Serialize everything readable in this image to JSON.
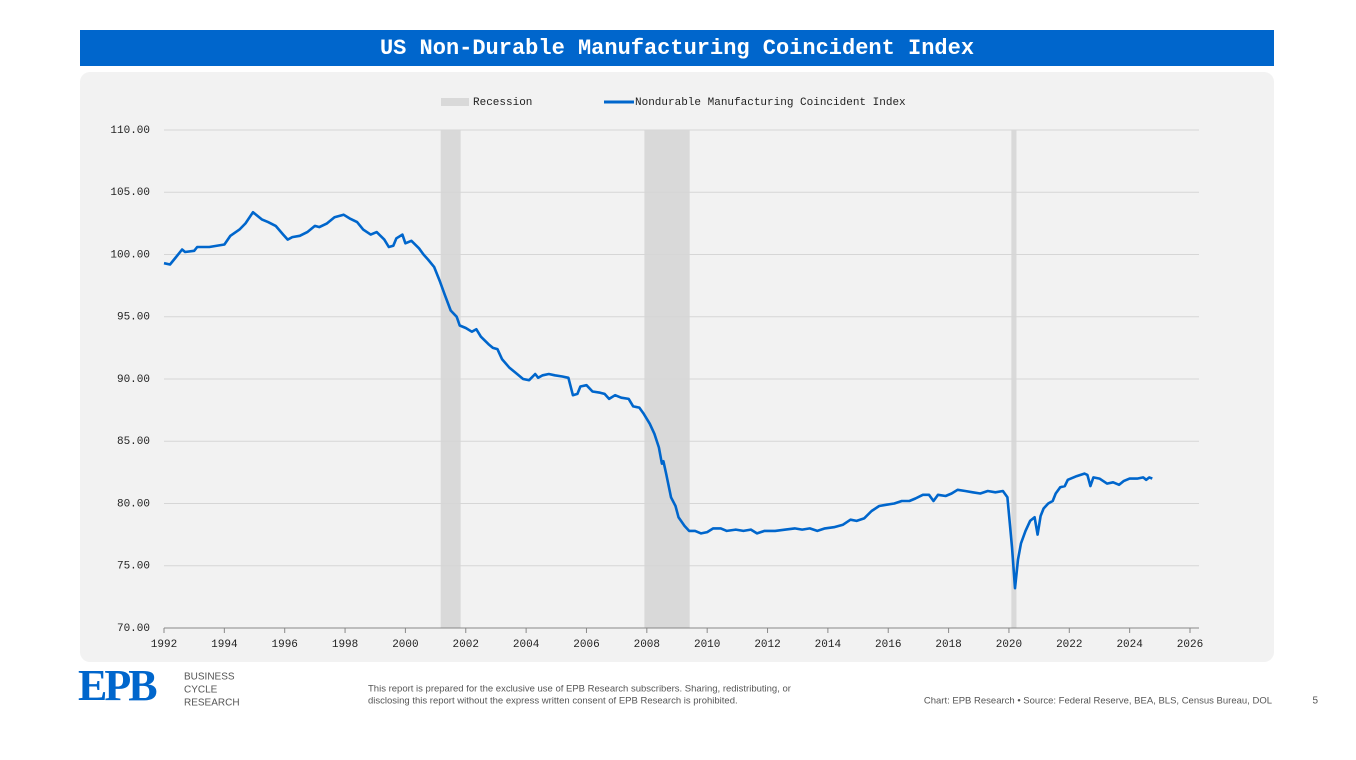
{
  "chart_data": {
    "type": "line",
    "title": "US Non-Durable Manufacturing Coincident Index",
    "grid": true,
    "legend": "top",
    "recessions": {
      "name": "Recession",
      "color": "#d9d9d9",
      "ranges": [
        [
          2001.17,
          2001.83
        ],
        [
          2007.92,
          2009.42
        ],
        [
          2020.08,
          2020.25
        ]
      ]
    },
    "x": [
      1992.0,
      1992.2,
      1992.4,
      1992.6,
      1992.7,
      1993.0,
      1993.1,
      1993.5,
      1994.0,
      1994.2,
      1994.5,
      1994.7,
      1994.95,
      1995.25,
      1995.45,
      1995.7,
      1995.95,
      1996.1,
      1996.25,
      1996.5,
      1996.75,
      1997.0,
      1997.15,
      1997.4,
      1997.65,
      1997.95,
      1998.15,
      1998.4,
      1998.6,
      1998.85,
      1999.05,
      1999.3,
      1999.45,
      1999.6,
      1999.7,
      1999.9,
      2000.0,
      2000.2,
      2000.45,
      2000.6,
      2000.75,
      2000.95,
      2001.15,
      2001.3,
      2001.5,
      2001.7,
      2001.8,
      2002.0,
      2002.2,
      2002.35,
      2002.5,
      2002.75,
      2002.9,
      2003.05,
      2003.2,
      2003.45,
      2003.65,
      2003.9,
      2004.1,
      2004.3,
      2004.4,
      2004.55,
      2004.75,
      2004.95,
      2005.2,
      2005.4,
      2005.55,
      2005.7,
      2005.8,
      2006.0,
      2006.2,
      2006.45,
      2006.6,
      2006.75,
      2006.95,
      2007.15,
      2007.4,
      2007.55,
      2007.75,
      2007.9,
      2008.1,
      2008.25,
      2008.4,
      2008.5,
      2008.55,
      2008.65,
      2008.8,
      2008.95,
      2009.05,
      2009.25,
      2009.4,
      2009.6,
      2009.8,
      2010.0,
      2010.2,
      2010.45,
      2010.65,
      2010.95,
      2011.2,
      2011.45,
      2011.65,
      2011.9,
      2012.25,
      2012.6,
      2012.9,
      2013.15,
      2013.4,
      2013.65,
      2013.9,
      2014.2,
      2014.5,
      2014.75,
      2014.95,
      2015.2,
      2015.45,
      2015.7,
      2015.95,
      2016.2,
      2016.45,
      2016.7,
      2016.9,
      2017.15,
      2017.35,
      2017.5,
      2017.65,
      2017.9,
      2018.1,
      2018.3,
      2018.55,
      2018.8,
      2019.05,
      2019.3,
      2019.55,
      2019.8,
      2019.95,
      2020.1,
      2020.2,
      2020.3,
      2020.4,
      2020.55,
      2020.7,
      2020.85,
      2020.95,
      2021.05,
      2021.15,
      2021.3,
      2021.45,
      2021.55,
      2021.7,
      2021.85,
      2021.95,
      2022.25,
      2022.5,
      2022.6,
      2022.7,
      2022.8,
      2023.0,
      2023.25,
      2023.45,
      2023.65,
      2023.8,
      2024.0,
      2024.25,
      2024.45,
      2024.55,
      2024.65,
      2024.75
    ],
    "series": [
      {
        "name": "Nondurable Manufacturing Coincident Index",
        "color": "#0066cc",
        "values": [
          99.3,
          99.2,
          99.8,
          100.4,
          100.2,
          100.3,
          100.6,
          100.6,
          100.8,
          101.5,
          102.0,
          102.5,
          103.4,
          102.8,
          102.6,
          102.3,
          101.6,
          101.2,
          101.4,
          101.5,
          101.8,
          102.3,
          102.2,
          102.5,
          103.0,
          103.2,
          102.9,
          102.6,
          102.0,
          101.6,
          101.8,
          101.2,
          100.6,
          100.7,
          101.3,
          101.6,
          100.9,
          101.1,
          100.5,
          100.0,
          99.6,
          99.0,
          97.8,
          96.8,
          95.5,
          95.0,
          94.3,
          94.1,
          93.8,
          94.0,
          93.4,
          92.8,
          92.5,
          92.4,
          91.6,
          90.9,
          90.5,
          90.0,
          89.9,
          90.4,
          90.1,
          90.3,
          90.4,
          90.3,
          90.2,
          90.1,
          88.7,
          88.8,
          89.4,
          89.5,
          89.0,
          88.9,
          88.8,
          88.4,
          88.7,
          88.5,
          88.4,
          87.8,
          87.7,
          87.2,
          86.4,
          85.6,
          84.5,
          83.2,
          83.4,
          82.3,
          80.5,
          79.8,
          78.9,
          78.2,
          77.8,
          77.8,
          77.6,
          77.7,
          78.0,
          78.0,
          77.8,
          77.9,
          77.8,
          77.9,
          77.6,
          77.8,
          77.8,
          77.9,
          78.0,
          77.9,
          78.0,
          77.8,
          78.0,
          78.1,
          78.3,
          78.7,
          78.6,
          78.8,
          79.4,
          79.8,
          79.9,
          80.0,
          80.2,
          80.2,
          80.4,
          80.7,
          80.7,
          80.2,
          80.7,
          80.6,
          80.8,
          81.1,
          81.0,
          80.9,
          80.8,
          81.0,
          80.9,
          81.0,
          80.5,
          76.5,
          73.2,
          75.5,
          76.8,
          77.8,
          78.6,
          78.9,
          77.5,
          79.0,
          79.6,
          80.0,
          80.2,
          80.8,
          81.3,
          81.4,
          81.9,
          82.2,
          82.4,
          82.3,
          81.4,
          82.1,
          82.0,
          81.6,
          81.7,
          81.5,
          81.8,
          82.0,
          82.0,
          82.1,
          81.9,
          82.1,
          82.0
        ]
      }
    ],
    "xlim": [
      1992,
      2026
    ],
    "xticks": [
      1992,
      1994,
      1996,
      1998,
      2000,
      2002,
      2004,
      2006,
      2008,
      2010,
      2012,
      2014,
      2016,
      2018,
      2020,
      2022,
      2024,
      2026
    ],
    "ylim": [
      70,
      110
    ],
    "yticks": [
      {
        "value": 70,
        "label": "70.00"
      },
      {
        "value": 75,
        "label": "75.00"
      },
      {
        "value": 80,
        "label": "80.00"
      },
      {
        "value": 85,
        "label": "85.00"
      },
      {
        "value": 90,
        "label": "90.00"
      },
      {
        "value": 95,
        "label": "95.00"
      },
      {
        "value": 100,
        "label": "100.00"
      },
      {
        "value": 105,
        "label": "105.00"
      },
      {
        "value": 110,
        "label": "110.00"
      }
    ]
  },
  "footer": {
    "logo": "EPB",
    "tagline": [
      "BUSINESS",
      "CYCLE",
      "RESEARCH"
    ],
    "disclaimer": [
      "This report is prepared for the exclusive use of EPB Research subscribers. Sharing, redistributing, or",
      "disclosing this report without the express written consent of EPB Research is prohibited."
    ],
    "source": "Chart: EPB Research  •  Source: Federal Reserve, BEA, BLS, Census Bureau, DOL",
    "page": "5"
  }
}
